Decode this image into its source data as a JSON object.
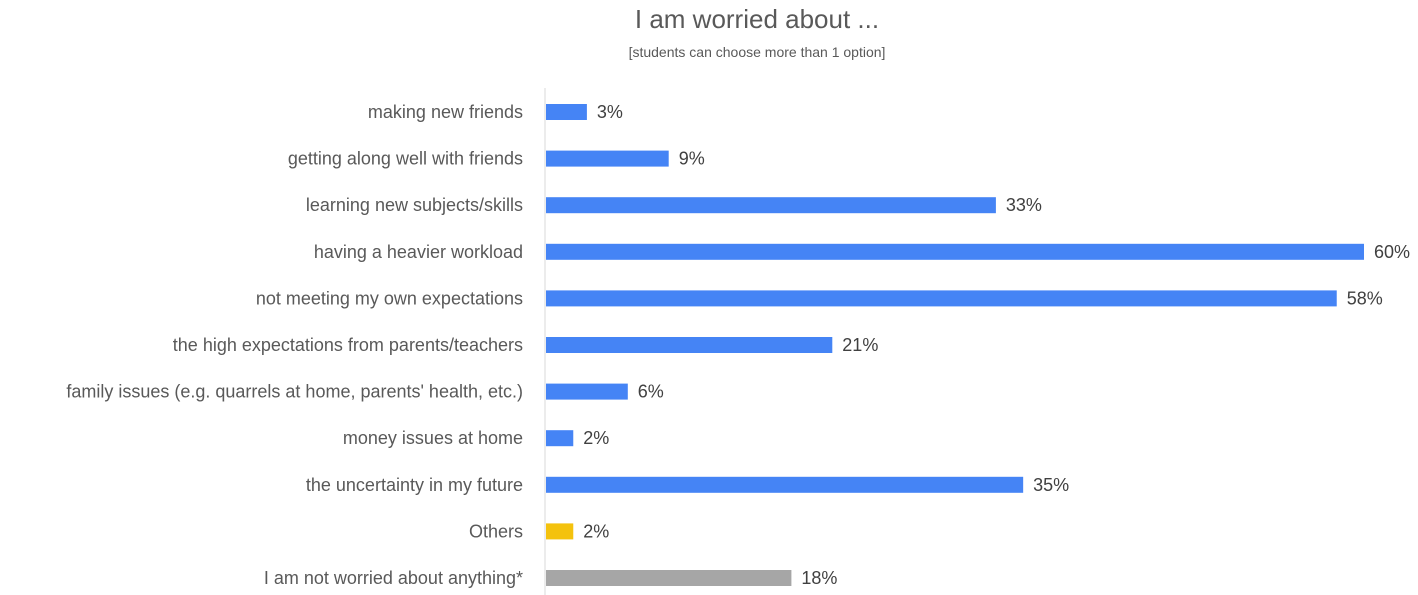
{
  "chart_data": {
    "type": "bar",
    "orientation": "horizontal",
    "title": "I am worried about ...",
    "subtitle": "[students can choose more than 1 option]",
    "xlabel": "",
    "ylabel": "",
    "xlim": [
      0,
      60
    ],
    "grid": false,
    "legend": "none",
    "value_format": "percent",
    "categories": [
      "making new friends",
      "getting along well with friends",
      "learning new subjects/skills",
      "having a heavier workload",
      "not meeting my own expectations",
      "the high expectations from parents/teachers",
      "family issues (e.g. quarrels at home, parents' health, etc.)",
      "money issues at home",
      "the uncertainty in my future",
      "Others",
      "I am not worried about anything*"
    ],
    "values": [
      3,
      9,
      33,
      60,
      58,
      21,
      6,
      2,
      35,
      2,
      18
    ],
    "value_labels": [
      "3%",
      "9%",
      "33%",
      "60%",
      "58%",
      "21%",
      "6%",
      "2%",
      "35%",
      "2%",
      "18%"
    ],
    "bar_colors": [
      "#4584f5",
      "#4584f5",
      "#4584f5",
      "#4584f5",
      "#4584f5",
      "#4584f5",
      "#4584f5",
      "#4584f5",
      "#4584f5",
      "#f4c20d",
      "#a6a6a6"
    ]
  },
  "colors": {
    "primary_bar": "#4584f5",
    "others_bar": "#f4c20d",
    "not_worried_bar": "#a6a6a6",
    "axis_line": "#d9d9d9",
    "text": "#595959"
  }
}
